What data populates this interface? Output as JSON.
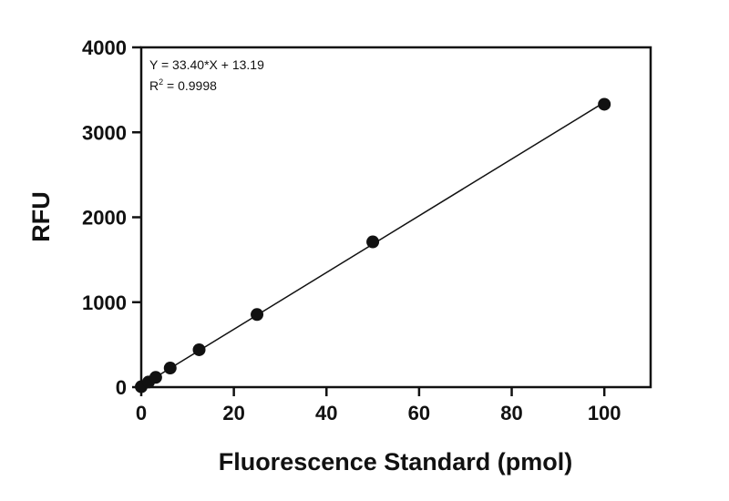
{
  "chart_data": {
    "type": "scatter",
    "title": "",
    "xlabel": "Fluorescence Standard (pmol)",
    "ylabel": "RFU",
    "xlim": [
      0,
      110
    ],
    "ylim": [
      0,
      4000
    ],
    "x_ticks": [
      "0",
      "20",
      "40",
      "60",
      "80",
      "100"
    ],
    "y_ticks": [
      "0",
      "1000",
      "2000",
      "3000",
      "4000"
    ],
    "points": {
      "x": [
        0,
        1.5625,
        3.125,
        6.25,
        12.5,
        25,
        50,
        100
      ],
      "y": [
        5,
        60,
        115,
        225,
        440,
        855,
        1710,
        3330
      ]
    },
    "fit_line": {
      "slope": 33.4,
      "intercept": 13.19,
      "x_range": [
        0,
        100
      ]
    },
    "annotation": {
      "equation": "Y = 33.40*X + 13.19",
      "r2_prefix": "R",
      "r2_sup": "2",
      "r2_value": " = 0.9998"
    },
    "grid": false,
    "colors": {
      "points": "#111111",
      "line": "#111111",
      "axis": "#111111"
    }
  }
}
